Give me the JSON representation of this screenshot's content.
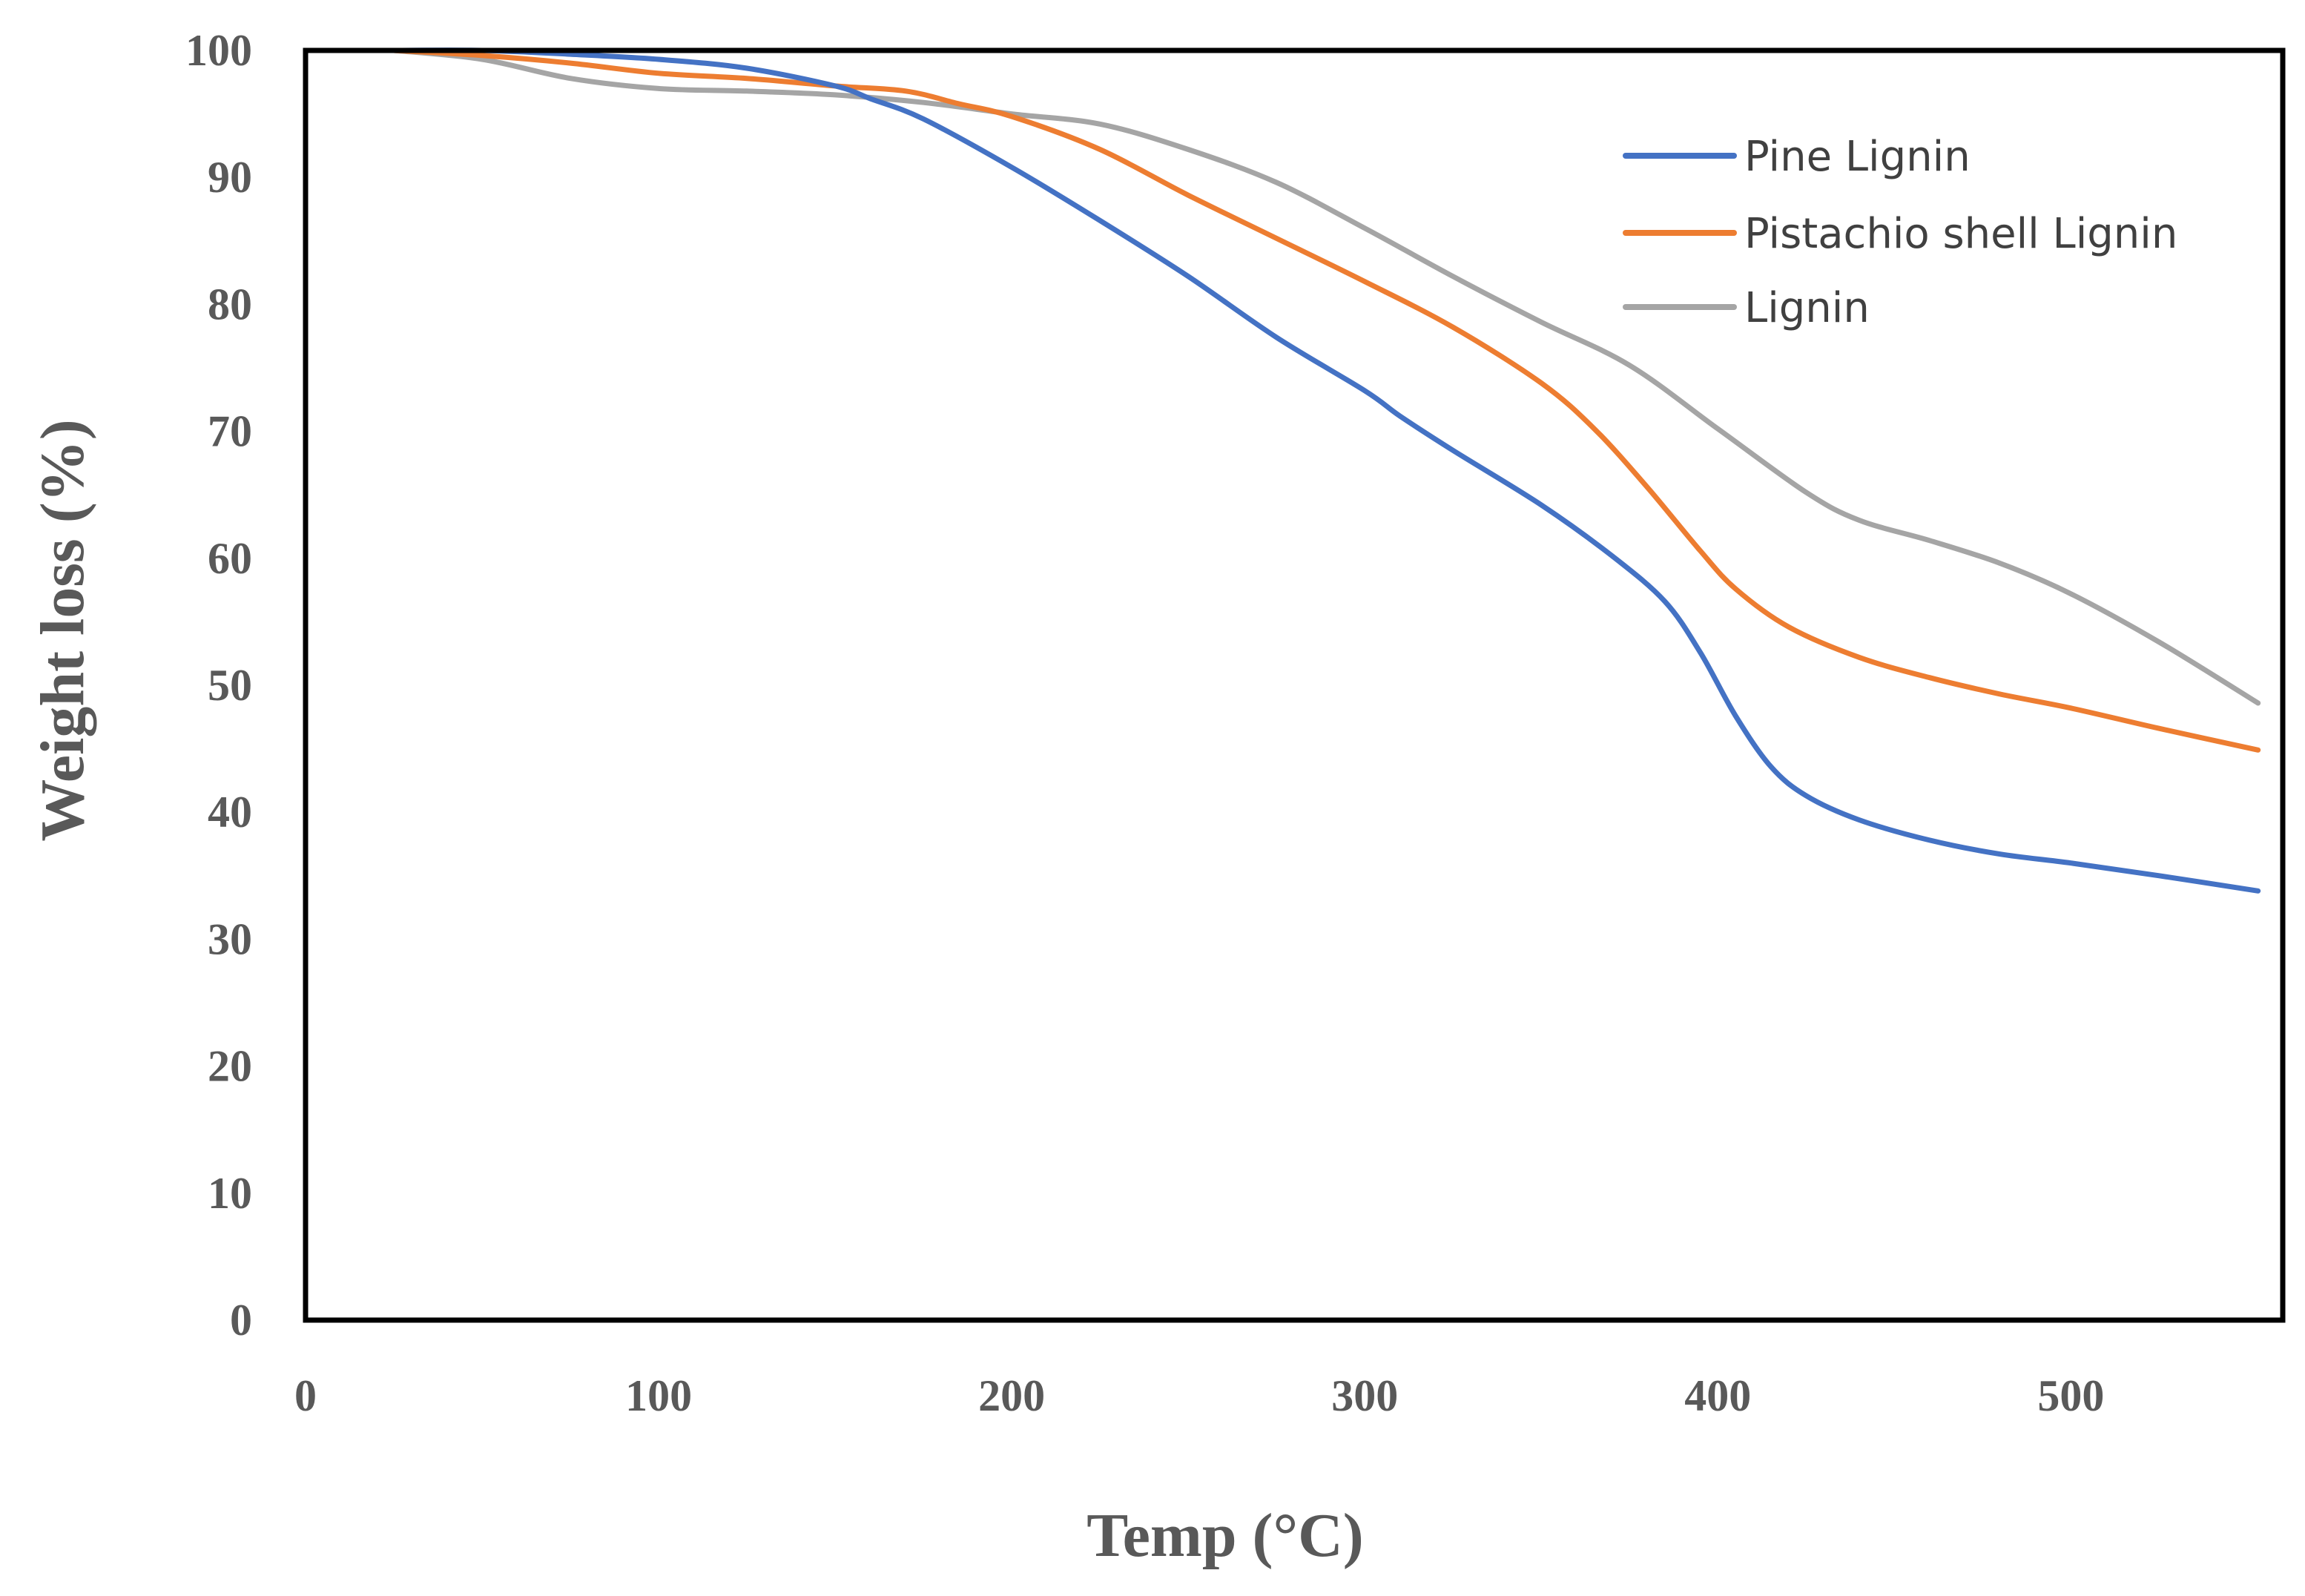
{
  "chart_data": {
    "type": "line",
    "title": "",
    "xlabel": "Temp (°C)",
    "ylabel": "Weight loss (%)",
    "xlim": [
      0,
      560
    ],
    "ylim": [
      0,
      100
    ],
    "xticks": [
      0,
      100,
      200,
      300,
      400,
      500
    ],
    "yticks": [
      0,
      10,
      20,
      30,
      40,
      50,
      60,
      70,
      80,
      90,
      100
    ],
    "legend_position": "top-right",
    "grid": false,
    "series": [
      {
        "name": "Pine Lignin",
        "color": "#4472C4",
        "points": [
          [
            25,
            100
          ],
          [
            50,
            100
          ],
          [
            75,
            99.7
          ],
          [
            100,
            99.3
          ],
          [
            125,
            98.6
          ],
          [
            150,
            97.2
          ],
          [
            160,
            96.2
          ],
          [
            175,
            94.6
          ],
          [
            200,
            90.8
          ],
          [
            225,
            86.6
          ],
          [
            250,
            82.2
          ],
          [
            275,
            77.4
          ],
          [
            300,
            73.2
          ],
          [
            310,
            71.2
          ],
          [
            325,
            68.5
          ],
          [
            350,
            64.2
          ],
          [
            370,
            60.2
          ],
          [
            385,
            56.6
          ],
          [
            395,
            52.6
          ],
          [
            405,
            47.6
          ],
          [
            415,
            43.6
          ],
          [
            425,
            41.3
          ],
          [
            440,
            39.4
          ],
          [
            460,
            37.8
          ],
          [
            480,
            36.7
          ],
          [
            500,
            36.0
          ],
          [
            525,
            35.0
          ],
          [
            553,
            33.8
          ]
        ]
      },
      {
        "name": "Pistachio shell Lignin",
        "color": "#ED7D31",
        "points": [
          [
            25,
            100
          ],
          [
            50,
            99.6
          ],
          [
            75,
            99.0
          ],
          [
            100,
            98.2
          ],
          [
            125,
            97.8
          ],
          [
            150,
            97.2
          ],
          [
            170,
            96.8
          ],
          [
            185,
            95.8
          ],
          [
            200,
            94.8
          ],
          [
            225,
            92.2
          ],
          [
            250,
            88.6
          ],
          [
            275,
            85.2
          ],
          [
            300,
            81.8
          ],
          [
            325,
            78.2
          ],
          [
            350,
            73.8
          ],
          [
            365,
            70.2
          ],
          [
            380,
            65.6
          ],
          [
            395,
            60.6
          ],
          [
            405,
            57.6
          ],
          [
            420,
            54.6
          ],
          [
            440,
            52.2
          ],
          [
            460,
            50.6
          ],
          [
            480,
            49.3
          ],
          [
            500,
            48.2
          ],
          [
            525,
            46.6
          ],
          [
            553,
            44.9
          ]
        ]
      },
      {
        "name": "Lignin",
        "color": "#A5A5A5",
        "points": [
          [
            25,
            100
          ],
          [
            50,
            99.3
          ],
          [
            75,
            97.8
          ],
          [
            100,
            97.0
          ],
          [
            125,
            96.8
          ],
          [
            150,
            96.5
          ],
          [
            175,
            95.9
          ],
          [
            200,
            95.0
          ],
          [
            225,
            94.2
          ],
          [
            250,
            92.2
          ],
          [
            275,
            89.6
          ],
          [
            300,
            86.0
          ],
          [
            325,
            82.2
          ],
          [
            350,
            78.6
          ],
          [
            375,
            75.2
          ],
          [
            400,
            70.2
          ],
          [
            425,
            65.2
          ],
          [
            440,
            63.0
          ],
          [
            460,
            61.4
          ],
          [
            480,
            59.6
          ],
          [
            500,
            57.2
          ],
          [
            525,
            53.4
          ],
          [
            553,
            48.6
          ]
        ]
      }
    ]
  }
}
